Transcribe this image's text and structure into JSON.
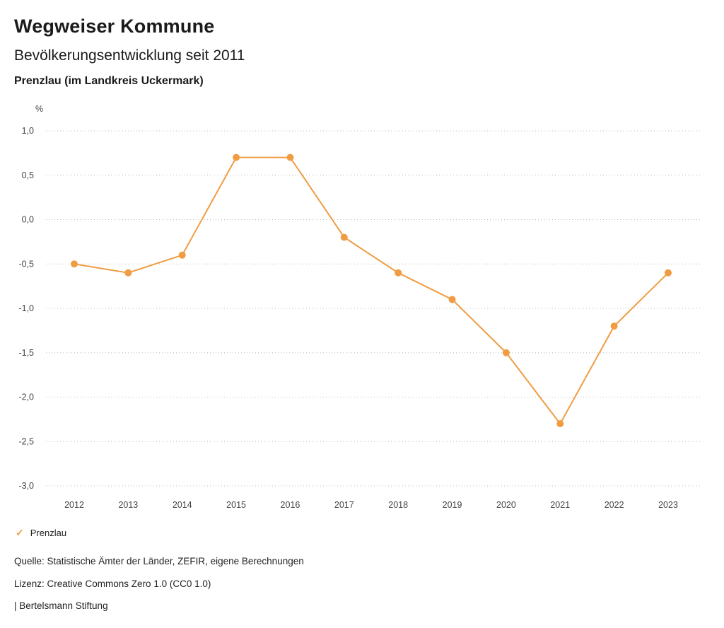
{
  "header": {
    "title": "Wegweiser Kommune",
    "subtitle": "Bevölkerungsentwicklung seit 2011",
    "region": "Prenzlau (im Landkreis Uckermark)"
  },
  "chart_data": {
    "type": "line",
    "title": "Bevölkerungsentwicklung seit 2011",
    "unit_label": "%",
    "categories": [
      "2012",
      "2013",
      "2014",
      "2015",
      "2016",
      "2017",
      "2018",
      "2019",
      "2020",
      "2021",
      "2022",
      "2023"
    ],
    "series": [
      {
        "name": "Prenzlau",
        "values": [
          -0.5,
          -0.6,
          -0.4,
          0.7,
          0.7,
          -0.2,
          -0.6,
          -0.9,
          -1.5,
          -2.3,
          -1.2,
          -0.6
        ]
      }
    ],
    "ylim": [
      -3.0,
      1.0
    ],
    "yticks": [
      {
        "v": 1.0,
        "label": "1,0"
      },
      {
        "v": 0.5,
        "label": "0,5"
      },
      {
        "v": 0.0,
        "label": "0,0"
      },
      {
        "v": -0.5,
        "label": "-0,5"
      },
      {
        "v": -1.0,
        "label": "-1,0"
      },
      {
        "v": -1.5,
        "label": "-1,5"
      },
      {
        "v": -2.0,
        "label": "-2,0"
      },
      {
        "v": -2.5,
        "label": "-2,5"
      },
      {
        "v": -3.0,
        "label": "-3,0"
      }
    ],
    "grid": "horizontal-dotted",
    "legend_position": "bottom-left",
    "line_color": "#F09C42",
    "grid_color": "#bcbcbc",
    "tick_text_color": "#444444"
  },
  "legend": {
    "check_icon": "✓",
    "label": "Prenzlau"
  },
  "footer": {
    "source": "Quelle: Statistische Ämter der Länder, ZEFIR, eigene Berechnungen",
    "license": "Lizenz: Creative Commons Zero 1.0 (CC0 1.0)",
    "attribution": "| Bertelsmann Stiftung"
  }
}
